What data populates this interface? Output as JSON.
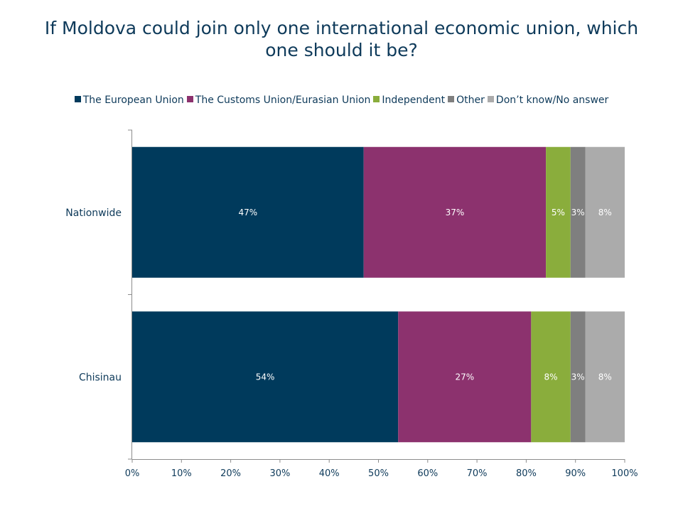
{
  "chart_data": {
    "type": "bar",
    "orientation": "horizontal",
    "stacked": true,
    "title": "If Moldova could join only one international economic union, which one should it be?",
    "title_lines": [
      "If Moldova could join only one international economic union, which",
      "one should it be?"
    ],
    "categories": [
      "Nationwide",
      "Chisinau"
    ],
    "series": [
      {
        "name": "The European Union",
        "color": "#003a5c",
        "values": [
          47,
          54
        ],
        "labels": [
          "47%",
          "54%"
        ]
      },
      {
        "name": "The Customs Union/Eurasian Union",
        "color": "#8c326e",
        "values": [
          37,
          27
        ],
        "labels": [
          "37%",
          "27%"
        ]
      },
      {
        "name": "Independent",
        "color": "#8aad3c",
        "values": [
          5,
          8
        ],
        "labels": [
          "5%",
          "8%"
        ]
      },
      {
        "name": "Other",
        "color": "#7f7f7f",
        "values": [
          3,
          3
        ],
        "labels": [
          "3%",
          "3%"
        ]
      },
      {
        "name": "Don’t know/No answer",
        "color": "#ababab",
        "values": [
          8,
          8
        ],
        "labels": [
          "8%",
          "8%"
        ]
      }
    ],
    "xlim": [
      0,
      100
    ],
    "xticks": [
      "0%",
      "10%",
      "20%",
      "30%",
      "40%",
      "50%",
      "60%",
      "70%",
      "80%",
      "90%",
      "100%"
    ],
    "legend_position": "top",
    "grid": false
  }
}
